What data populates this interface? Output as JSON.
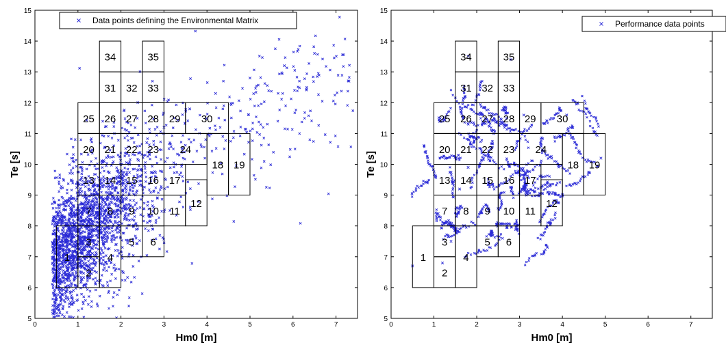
{
  "chart_data": [
    {
      "type": "scatter",
      "xlabel": "Hm0 [m]",
      "ylabel": "Te [s]",
      "xlim": [
        0,
        7.5
      ],
      "ylim": [
        5,
        15
      ],
      "xticks": [
        "0",
        "1",
        "2",
        "3",
        "4",
        "5",
        "6",
        "7"
      ],
      "yticks": [
        "5",
        "6",
        "7",
        "8",
        "9",
        "10",
        "11",
        "12",
        "13",
        "14",
        "15"
      ],
      "legend": {
        "position": "top",
        "entries": [
          "Data points defining the Environmental Matrix"
        ]
      },
      "series": [
        {
          "name": "Data points defining the Environmental Matrix",
          "marker": "x",
          "color": "#2a2ad6",
          "points": [
            [
              0.5,
              5.3
            ],
            [
              0.6,
              6.2
            ],
            [
              0.8,
              6.8
            ],
            [
              1.0,
              7.4
            ],
            [
              1.2,
              7.9
            ],
            [
              1.5,
              8.6
            ],
            [
              1.8,
              9.3
            ],
            [
              2.2,
              10.0
            ],
            [
              2.6,
              10.7
            ],
            [
              3.0,
              11.2
            ],
            [
              3.6,
              11.8
            ],
            [
              4.2,
              12.3
            ],
            [
              5.0,
              12.8
            ],
            [
              5.8,
              13.2
            ],
            [
              6.5,
              13.6
            ],
            [
              7.3,
              12.7
            ]
          ]
        }
      ],
      "bins": [
        {
          "label": "1",
          "hs": [
            0.5,
            1.0
          ],
          "te": [
            6,
            8
          ]
        },
        {
          "label": "2",
          "hs": [
            1.0,
            1.5
          ],
          "te": [
            6,
            7
          ]
        },
        {
          "label": "3",
          "hs": [
            1.0,
            1.5
          ],
          "te": [
            7,
            8
          ]
        },
        {
          "label": "4",
          "hs": [
            1.5,
            2.0
          ],
          "te": [
            6,
            8
          ]
        },
        {
          "label": "5",
          "hs": [
            2.0,
            2.5
          ],
          "te": [
            7,
            8
          ]
        },
        {
          "label": "6",
          "hs": [
            2.5,
            3.0
          ],
          "te": [
            7,
            8
          ]
        },
        {
          "label": "7",
          "hs": [
            1.0,
            1.5
          ],
          "te": [
            8,
            9
          ]
        },
        {
          "label": "8",
          "hs": [
            1.5,
            2.0
          ],
          "te": [
            8,
            9
          ]
        },
        {
          "label": "9",
          "hs": [
            2.0,
            2.5
          ],
          "te": [
            8,
            9
          ]
        },
        {
          "label": "10",
          "hs": [
            2.5,
            3.0
          ],
          "te": [
            8,
            9
          ]
        },
        {
          "label": "11",
          "hs": [
            3.0,
            3.5
          ],
          "te": [
            8,
            9
          ]
        },
        {
          "label": "12",
          "hs": [
            3.5,
            4.0
          ],
          "te": [
            8,
            9.5
          ]
        },
        {
          "label": "13",
          "hs": [
            1.0,
            1.5
          ],
          "te": [
            9,
            10
          ]
        },
        {
          "label": "14",
          "hs": [
            1.5,
            2.0
          ],
          "te": [
            9,
            10
          ]
        },
        {
          "label": "15",
          "hs": [
            2.0,
            2.5
          ],
          "te": [
            9,
            10
          ]
        },
        {
          "label": "16",
          "hs": [
            2.5,
            3.0
          ],
          "te": [
            9,
            10
          ]
        },
        {
          "label": "17",
          "hs": [
            3.0,
            3.5
          ],
          "te": [
            9,
            10
          ]
        },
        {
          "label": "18",
          "hs": [
            4.0,
            4.5
          ],
          "te": [
            9,
            11
          ]
        },
        {
          "label": "19",
          "hs": [
            4.5,
            5.0
          ],
          "te": [
            9,
            11
          ]
        },
        {
          "label": "20",
          "hs": [
            1.0,
            1.5
          ],
          "te": [
            10,
            11
          ]
        },
        {
          "label": "21",
          "hs": [
            1.5,
            2.0
          ],
          "te": [
            10,
            11
          ]
        },
        {
          "label": "22",
          "hs": [
            2.0,
            2.5
          ],
          "te": [
            10,
            11
          ]
        },
        {
          "label": "23",
          "hs": [
            2.5,
            3.0
          ],
          "te": [
            10,
            11
          ]
        },
        {
          "label": "24",
          "hs": [
            3.0,
            4.0
          ],
          "te": [
            10,
            11
          ]
        },
        {
          "label": "25",
          "hs": [
            1.0,
            1.5
          ],
          "te": [
            11,
            12
          ]
        },
        {
          "label": "26",
          "hs": [
            1.5,
            2.0
          ],
          "te": [
            11,
            12
          ]
        },
        {
          "label": "27",
          "hs": [
            2.0,
            2.5
          ],
          "te": [
            11,
            12
          ]
        },
        {
          "label": "28",
          "hs": [
            2.5,
            3.0
          ],
          "te": [
            11,
            12
          ]
        },
        {
          "label": "29",
          "hs": [
            3.0,
            3.5
          ],
          "te": [
            11,
            12
          ]
        },
        {
          "label": "30",
          "hs": [
            3.5,
            4.5
          ],
          "te": [
            11,
            12
          ]
        },
        {
          "label": "31",
          "hs": [
            1.5,
            2.0
          ],
          "te": [
            12,
            13
          ]
        },
        {
          "label": "32",
          "hs": [
            2.0,
            2.5
          ],
          "te": [
            12,
            13
          ]
        },
        {
          "label": "33",
          "hs": [
            2.5,
            3.0
          ],
          "te": [
            12,
            13
          ]
        },
        {
          "label": "34",
          "hs": [
            1.5,
            2.0
          ],
          "te": [
            13,
            14
          ]
        },
        {
          "label": "35",
          "hs": [
            2.5,
            3.0
          ],
          "te": [
            13,
            14
          ]
        }
      ]
    },
    {
      "type": "scatter",
      "xlabel": "Hm0 [m]",
      "ylabel": "Te [s]",
      "xlim": [
        0,
        7.5
      ],
      "ylim": [
        5,
        15
      ],
      "xticks": [
        "0",
        "1",
        "2",
        "3",
        "4",
        "5",
        "6",
        "7"
      ],
      "yticks": [
        "5",
        "6",
        "7",
        "8",
        "9",
        "10",
        "11",
        "12",
        "13",
        "14",
        "15"
      ],
      "legend": {
        "position": "top-right",
        "entries": [
          "Performance data points"
        ]
      },
      "series": [
        {
          "name": "Performance data points",
          "marker": "x",
          "color": "#2a2ad6",
          "points": [
            [
              0.5,
              6.7
            ],
            [
              1.2,
              6.8
            ],
            [
              1.4,
              7.5
            ],
            [
              1.1,
              8.4
            ],
            [
              1.6,
              9.2
            ],
            [
              1.8,
              9.9
            ],
            [
              2.1,
              10.5
            ],
            [
              2.4,
              11.0
            ],
            [
              2.7,
              11.5
            ],
            [
              3.1,
              11.6
            ],
            [
              4.1,
              11.6
            ],
            [
              4.4,
              10.4
            ],
            [
              4.9,
              10.2
            ],
            [
              2.8,
              13.4
            ],
            [
              1.8,
              13.5
            ],
            [
              2.6,
              7.6
            ]
          ]
        }
      ],
      "bins": [
        {
          "label": "1",
          "hs": [
            0.5,
            1.0
          ],
          "te": [
            6,
            8
          ]
        },
        {
          "label": "2",
          "hs": [
            1.0,
            1.5
          ],
          "te": [
            6,
            7
          ]
        },
        {
          "label": "3",
          "hs": [
            1.0,
            1.5
          ],
          "te": [
            7,
            8
          ]
        },
        {
          "label": "4",
          "hs": [
            1.5,
            2.0
          ],
          "te": [
            6,
            8
          ]
        },
        {
          "label": "5",
          "hs": [
            2.0,
            2.5
          ],
          "te": [
            7,
            8
          ]
        },
        {
          "label": "6",
          "hs": [
            2.5,
            3.0
          ],
          "te": [
            7,
            8
          ]
        },
        {
          "label": "7",
          "hs": [
            1.0,
            1.5
          ],
          "te": [
            8,
            9
          ]
        },
        {
          "label": "8",
          "hs": [
            1.5,
            2.0
          ],
          "te": [
            8,
            9
          ]
        },
        {
          "label": "9",
          "hs": [
            2.0,
            2.5
          ],
          "te": [
            8,
            9
          ]
        },
        {
          "label": "10",
          "hs": [
            2.5,
            3.0
          ],
          "te": [
            8,
            9
          ]
        },
        {
          "label": "11",
          "hs": [
            3.0,
            3.5
          ],
          "te": [
            8,
            9
          ]
        },
        {
          "label": "12",
          "hs": [
            3.5,
            4.0
          ],
          "te": [
            8,
            9.5
          ]
        },
        {
          "label": "13",
          "hs": [
            1.0,
            1.5
          ],
          "te": [
            9,
            10
          ]
        },
        {
          "label": "14",
          "hs": [
            1.5,
            2.0
          ],
          "te": [
            9,
            10
          ]
        },
        {
          "label": "15",
          "hs": [
            2.0,
            2.5
          ],
          "te": [
            9,
            10
          ]
        },
        {
          "label": "16",
          "hs": [
            2.5,
            3.0
          ],
          "te": [
            9,
            10
          ]
        },
        {
          "label": "17",
          "hs": [
            3.0,
            3.5
          ],
          "te": [
            9,
            10
          ]
        },
        {
          "label": "18",
          "hs": [
            4.0,
            4.5
          ],
          "te": [
            9,
            11
          ]
        },
        {
          "label": "19",
          "hs": [
            4.5,
            5.0
          ],
          "te": [
            9,
            11
          ]
        },
        {
          "label": "20",
          "hs": [
            1.0,
            1.5
          ],
          "te": [
            10,
            11
          ]
        },
        {
          "label": "21",
          "hs": [
            1.5,
            2.0
          ],
          "te": [
            10,
            11
          ]
        },
        {
          "label": "22",
          "hs": [
            2.0,
            2.5
          ],
          "te": [
            10,
            11
          ]
        },
        {
          "label": "23",
          "hs": [
            2.5,
            3.0
          ],
          "te": [
            10,
            11
          ]
        },
        {
          "label": "24",
          "hs": [
            3.0,
            4.0
          ],
          "te": [
            10,
            11
          ]
        },
        {
          "label": "25",
          "hs": [
            1.0,
            1.5
          ],
          "te": [
            11,
            12
          ]
        },
        {
          "label": "26",
          "hs": [
            1.5,
            2.0
          ],
          "te": [
            11,
            12
          ]
        },
        {
          "label": "27",
          "hs": [
            2.0,
            2.5
          ],
          "te": [
            11,
            12
          ]
        },
        {
          "label": "28",
          "hs": [
            2.5,
            3.0
          ],
          "te": [
            11,
            12
          ]
        },
        {
          "label": "29",
          "hs": [
            3.0,
            3.5
          ],
          "te": [
            11,
            12
          ]
        },
        {
          "label": "30",
          "hs": [
            3.5,
            4.5
          ],
          "te": [
            11,
            12
          ]
        },
        {
          "label": "31",
          "hs": [
            1.5,
            2.0
          ],
          "te": [
            12,
            13
          ]
        },
        {
          "label": "32",
          "hs": [
            2.0,
            2.5
          ],
          "te": [
            12,
            13
          ]
        },
        {
          "label": "33",
          "hs": [
            2.5,
            3.0
          ],
          "te": [
            12,
            13
          ]
        },
        {
          "label": "34",
          "hs": [
            1.5,
            2.0
          ],
          "te": [
            13,
            14
          ]
        },
        {
          "label": "35",
          "hs": [
            2.5,
            3.0
          ],
          "te": [
            13,
            14
          ]
        }
      ]
    }
  ]
}
